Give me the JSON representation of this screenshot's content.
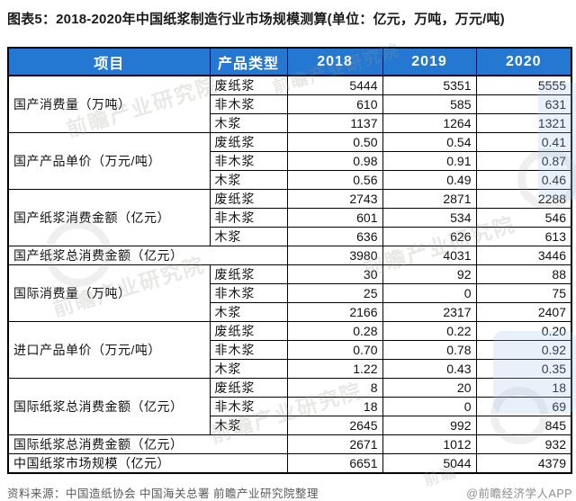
{
  "title": "图表5：2018-2020年中国纸浆制造行业市场规模测算(单位：亿元，万吨，万元/吨)",
  "colors": {
    "header_bg": "#2478d2",
    "header_text": "#ffffff",
    "border": "#000000",
    "title_text": "#1a1a1a",
    "source_text": "#595959",
    "attribution_text": "#8c8c8c",
    "watermark_blue": "#a5c6ec"
  },
  "chart_data": {
    "type": "table",
    "title": "图表5：2018-2020年中国纸浆制造行业市场规模测算(单位：亿元，万吨，万元/吨)",
    "columns": [
      "项目",
      "产品类型",
      "2018",
      "2019",
      "2020"
    ],
    "groups": [
      {
        "label": "国产消费量（万吨）",
        "rows": [
          {
            "type": "废纸浆",
            "values": [
              "5444",
              "5351",
              "5555"
            ]
          },
          {
            "type": "非木浆",
            "values": [
              "610",
              "585",
              "631"
            ]
          },
          {
            "type": "木浆",
            "values": [
              "1137",
              "1264",
              "1321"
            ]
          }
        ]
      },
      {
        "label": "国产产品单价（万元/吨）",
        "rows": [
          {
            "type": "废纸浆",
            "values": [
              "0.50",
              "0.54",
              "0.41"
            ]
          },
          {
            "type": "非木浆",
            "values": [
              "0.98",
              "0.91",
              "0.87"
            ]
          },
          {
            "type": "木浆",
            "values": [
              "0.56",
              "0.49",
              "0.46"
            ]
          }
        ]
      },
      {
        "label": "国产纸浆消费金额（亿元）",
        "rows": [
          {
            "type": "废纸浆",
            "values": [
              "2743",
              "2871",
              "2288"
            ]
          },
          {
            "type": "非木浆",
            "values": [
              "601",
              "534",
              "546"
            ]
          },
          {
            "type": "木浆",
            "values": [
              "636",
              "626",
              "613"
            ]
          }
        ]
      },
      {
        "label": "国产纸浆总消费金额（亿元）",
        "total": true,
        "values": [
          "3980",
          "4031",
          "3446"
        ]
      },
      {
        "label": "国际消费量（万吨）",
        "rows": [
          {
            "type": "废纸浆",
            "values": [
              "30",
              "92",
              "88"
            ]
          },
          {
            "type": "非木浆",
            "values": [
              "25",
              "0",
              "75"
            ]
          },
          {
            "type": "木浆",
            "values": [
              "2166",
              "2317",
              "2407"
            ]
          }
        ]
      },
      {
        "label": "进口产品单价（万元/吨）",
        "rows": [
          {
            "type": "废纸浆",
            "values": [
              "0.28",
              "0.22",
              "0.20"
            ]
          },
          {
            "type": "非木浆",
            "values": [
              "0.70",
              "0.78",
              "0.92"
            ]
          },
          {
            "type": "木浆",
            "values": [
              "1.22",
              "0.43",
              "0.35"
            ]
          }
        ]
      },
      {
        "label": "国际纸浆总消费金额（亿元）",
        "rows": [
          {
            "type": "废纸浆",
            "values": [
              "8",
              "20",
              "18"
            ]
          },
          {
            "type": "非木浆",
            "values": [
              "18",
              "0",
              "69"
            ]
          },
          {
            "type": "木浆",
            "values": [
              "2645",
              "992",
              "845"
            ]
          }
        ]
      },
      {
        "label": "国际纸浆总消费金额（亿元）",
        "total": true,
        "values": [
          "2671",
          "1012",
          "932"
        ]
      },
      {
        "label": "中国纸浆市场规模（亿元）",
        "total": true,
        "values": [
          "6651",
          "5044",
          "4379"
        ]
      }
    ]
  },
  "footer": {
    "source": "资料来源：中国造纸协会 中国海关总署 前瞻产业研究院整理",
    "attribution": "@前瞻经济学人APP"
  },
  "watermark": {
    "text": "前瞻产业研究院",
    "text_short": "前瞻"
  }
}
